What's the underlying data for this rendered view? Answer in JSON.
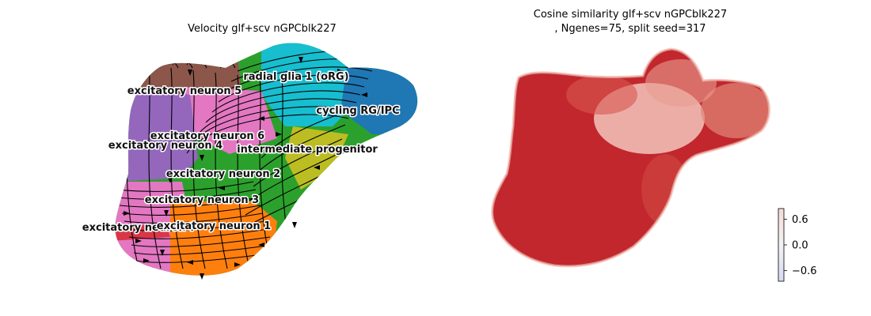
{
  "chart_data": [
    {
      "type": "scatter",
      "subtype": "umap-embedding-with-velocity-streamlines",
      "title": "Velocity glf+scv nGPCblk227",
      "clusters": [
        {
          "name": "radial glia 1 (oRG)",
          "color": "#17becf"
        },
        {
          "name": "cycling RG/IPC",
          "color": "#1f77b4"
        },
        {
          "name": "excitatory neuron 5",
          "color": "#8c564b"
        },
        {
          "name": "excitatory neuron 6",
          "color": "#e377c2"
        },
        {
          "name": "excitatory neuron 4",
          "color": "#9467bd"
        },
        {
          "name": "intermediate progenitor",
          "color": "#bcbd22"
        },
        {
          "name": "excitatory neuron 2",
          "color": "#2ca02c"
        },
        {
          "name": "excitatory neuron 3",
          "color": "#2ca02c"
        },
        {
          "name": "excitatory neuron 7",
          "color": "#d62728"
        },
        {
          "name": "excitatory neuron 1",
          "color": "#ff7f0e"
        }
      ],
      "label_overlap_note": "excitatory neuron 7 and excitatory neuron 1 labels overlap"
    },
    {
      "type": "scatter",
      "subtype": "umap-embedding-colored-by-value",
      "title_line1": "Cosine similarity glf+scv nGPCblk227",
      "title_line2": ", Ngenes=75, split seed=317",
      "colorbar": {
        "range": [
          -0.85,
          0.85
        ],
        "ticks": [
          0.6,
          0.0,
          -0.6
        ],
        "tick_labels": [
          "0.6",
          "0.0",
          "−0.6"
        ],
        "colormap": "coolwarm"
      },
      "dominant_value": 0.85,
      "dominant_color": "#c1272d"
    }
  ]
}
